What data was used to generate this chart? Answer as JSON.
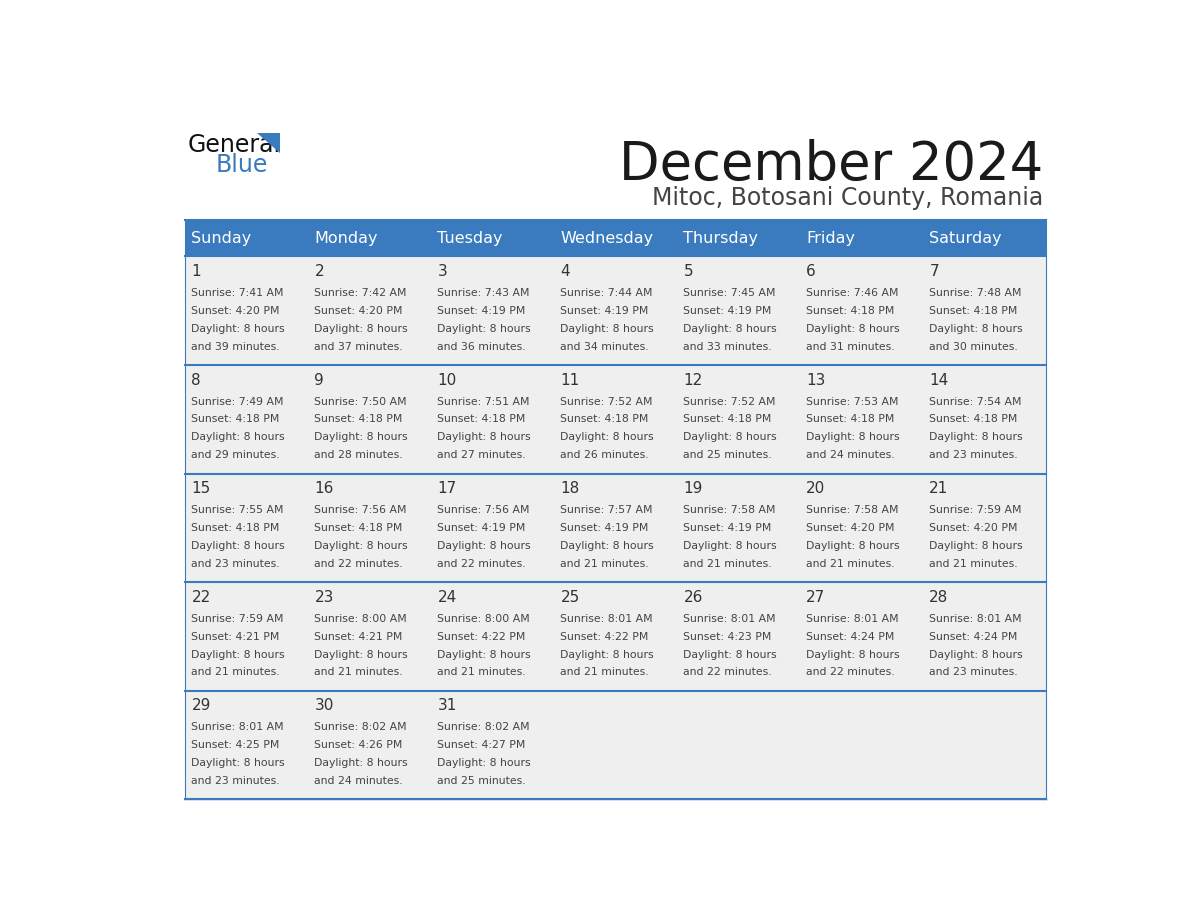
{
  "title": "December 2024",
  "subtitle": "Mitoc, Botosani County, Romania",
  "header_color": "#3a7abf",
  "header_text_color": "#ffffff",
  "cell_bg_color": "#efefef",
  "border_color": "#3a7abf",
  "day_names": [
    "Sunday",
    "Monday",
    "Tuesday",
    "Wednesday",
    "Thursday",
    "Friday",
    "Saturday"
  ],
  "weeks": [
    [
      {
        "day": 1,
        "sunrise": "7:41 AM",
        "sunset": "4:20 PM",
        "daylight": "8 hours and 39 minutes."
      },
      {
        "day": 2,
        "sunrise": "7:42 AM",
        "sunset": "4:20 PM",
        "daylight": "8 hours and 37 minutes."
      },
      {
        "day": 3,
        "sunrise": "7:43 AM",
        "sunset": "4:19 PM",
        "daylight": "8 hours and 36 minutes."
      },
      {
        "day": 4,
        "sunrise": "7:44 AM",
        "sunset": "4:19 PM",
        "daylight": "8 hours and 34 minutes."
      },
      {
        "day": 5,
        "sunrise": "7:45 AM",
        "sunset": "4:19 PM",
        "daylight": "8 hours and 33 minutes."
      },
      {
        "day": 6,
        "sunrise": "7:46 AM",
        "sunset": "4:18 PM",
        "daylight": "8 hours and 31 minutes."
      },
      {
        "day": 7,
        "sunrise": "7:48 AM",
        "sunset": "4:18 PM",
        "daylight": "8 hours and 30 minutes."
      }
    ],
    [
      {
        "day": 8,
        "sunrise": "7:49 AM",
        "sunset": "4:18 PM",
        "daylight": "8 hours and 29 minutes."
      },
      {
        "day": 9,
        "sunrise": "7:50 AM",
        "sunset": "4:18 PM",
        "daylight": "8 hours and 28 minutes."
      },
      {
        "day": 10,
        "sunrise": "7:51 AM",
        "sunset": "4:18 PM",
        "daylight": "8 hours and 27 minutes."
      },
      {
        "day": 11,
        "sunrise": "7:52 AM",
        "sunset": "4:18 PM",
        "daylight": "8 hours and 26 minutes."
      },
      {
        "day": 12,
        "sunrise": "7:52 AM",
        "sunset": "4:18 PM",
        "daylight": "8 hours and 25 minutes."
      },
      {
        "day": 13,
        "sunrise": "7:53 AM",
        "sunset": "4:18 PM",
        "daylight": "8 hours and 24 minutes."
      },
      {
        "day": 14,
        "sunrise": "7:54 AM",
        "sunset": "4:18 PM",
        "daylight": "8 hours and 23 minutes."
      }
    ],
    [
      {
        "day": 15,
        "sunrise": "7:55 AM",
        "sunset": "4:18 PM",
        "daylight": "8 hours and 23 minutes."
      },
      {
        "day": 16,
        "sunrise": "7:56 AM",
        "sunset": "4:18 PM",
        "daylight": "8 hours and 22 minutes."
      },
      {
        "day": 17,
        "sunrise": "7:56 AM",
        "sunset": "4:19 PM",
        "daylight": "8 hours and 22 minutes."
      },
      {
        "day": 18,
        "sunrise": "7:57 AM",
        "sunset": "4:19 PM",
        "daylight": "8 hours and 21 minutes."
      },
      {
        "day": 19,
        "sunrise": "7:58 AM",
        "sunset": "4:19 PM",
        "daylight": "8 hours and 21 minutes."
      },
      {
        "day": 20,
        "sunrise": "7:58 AM",
        "sunset": "4:20 PM",
        "daylight": "8 hours and 21 minutes."
      },
      {
        "day": 21,
        "sunrise": "7:59 AM",
        "sunset": "4:20 PM",
        "daylight": "8 hours and 21 minutes."
      }
    ],
    [
      {
        "day": 22,
        "sunrise": "7:59 AM",
        "sunset": "4:21 PM",
        "daylight": "8 hours and 21 minutes."
      },
      {
        "day": 23,
        "sunrise": "8:00 AM",
        "sunset": "4:21 PM",
        "daylight": "8 hours and 21 minutes."
      },
      {
        "day": 24,
        "sunrise": "8:00 AM",
        "sunset": "4:22 PM",
        "daylight": "8 hours and 21 minutes."
      },
      {
        "day": 25,
        "sunrise": "8:01 AM",
        "sunset": "4:22 PM",
        "daylight": "8 hours and 21 minutes."
      },
      {
        "day": 26,
        "sunrise": "8:01 AM",
        "sunset": "4:23 PM",
        "daylight": "8 hours and 22 minutes."
      },
      {
        "day": 27,
        "sunrise": "8:01 AM",
        "sunset": "4:24 PM",
        "daylight": "8 hours and 22 minutes."
      },
      {
        "day": 28,
        "sunrise": "8:01 AM",
        "sunset": "4:24 PM",
        "daylight": "8 hours and 23 minutes."
      }
    ],
    [
      {
        "day": 29,
        "sunrise": "8:01 AM",
        "sunset": "4:25 PM",
        "daylight": "8 hours and 23 minutes."
      },
      {
        "day": 30,
        "sunrise": "8:02 AM",
        "sunset": "4:26 PM",
        "daylight": "8 hours and 24 minutes."
      },
      {
        "day": 31,
        "sunrise": "8:02 AM",
        "sunset": "4:27 PM",
        "daylight": "8 hours and 25 minutes."
      },
      null,
      null,
      null,
      null
    ]
  ],
  "logo_triangle_color": "#3a7abf"
}
